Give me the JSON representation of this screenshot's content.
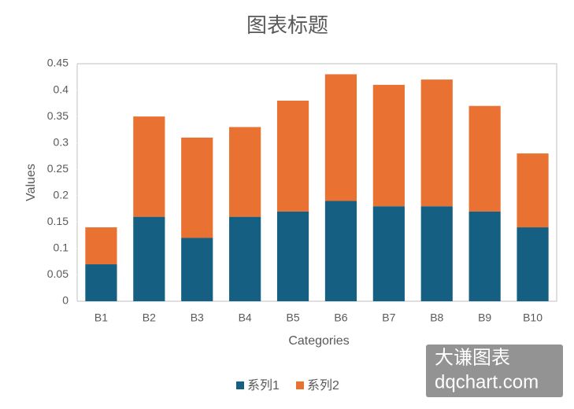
{
  "chart_data": {
    "type": "stacked_bar",
    "title": "图表标题",
    "x_label": "Categories",
    "y_label": "Values",
    "categories": [
      "B1",
      "B2",
      "B3",
      "B4",
      "B5",
      "B6",
      "B7",
      "B8",
      "B9",
      "B10"
    ],
    "series": [
      {
        "name": "系列1",
        "color": "#156082",
        "values": [
          0.07,
          0.16,
          0.12,
          0.16,
          0.17,
          0.19,
          0.18,
          0.18,
          0.17,
          0.14
        ]
      },
      {
        "name": "系列2",
        "color": "#e97132",
        "values": [
          0.07,
          0.19,
          0.19,
          0.17,
          0.21,
          0.24,
          0.23,
          0.24,
          0.2,
          0.14
        ]
      }
    ],
    "ylim": [
      0,
      0.45
    ],
    "yticks": [
      0,
      0.05,
      0.1,
      0.15,
      0.2,
      0.25,
      0.3,
      0.35,
      0.4,
      0.45
    ],
    "grid": false,
    "legend": "bottom"
  },
  "watermark": {
    "line1": "大谦图表",
    "line2": "dqchart.com"
  }
}
